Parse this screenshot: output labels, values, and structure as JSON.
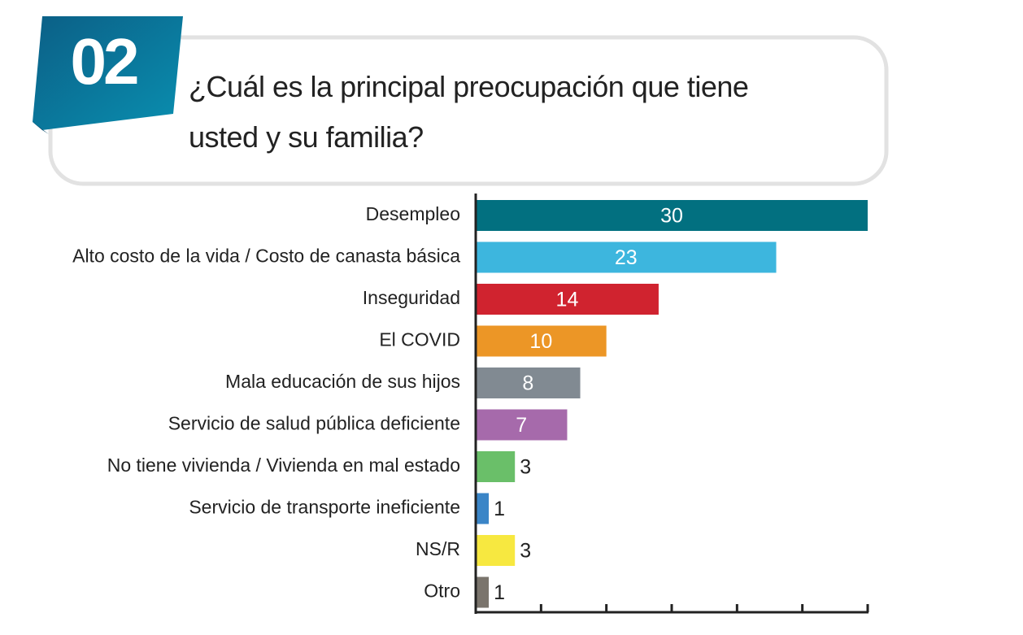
{
  "badge": "02",
  "chart_data": {
    "type": "hbar",
    "title": "¿Cuál es la principal preocupación que tiene usted y su familia?",
    "categories": [
      "Desempleo",
      "Alto costo de la vida / Costo de canasta básica",
      "Inseguridad",
      "El COVID",
      "Mala educación de sus hijos",
      "Servicio de salud pública deficiente",
      "No tiene vivienda / Vivienda en mal estado",
      "Servicio de transporte ineficiente",
      "NS/R",
      "Otro"
    ],
    "values": [
      30,
      23,
      14,
      10,
      8,
      7,
      3,
      1,
      3,
      1
    ],
    "colors": [
      "#027080",
      "#3db6de",
      "#d0232f",
      "#ec9626",
      "#818a92",
      "#a66aab",
      "#6abf69",
      "#3a85c7",
      "#f7e840",
      "#7a746c"
    ],
    "xlim": [
      0,
      30
    ],
    "xticks": [
      0,
      5,
      10,
      15,
      20,
      25,
      30
    ]
  }
}
